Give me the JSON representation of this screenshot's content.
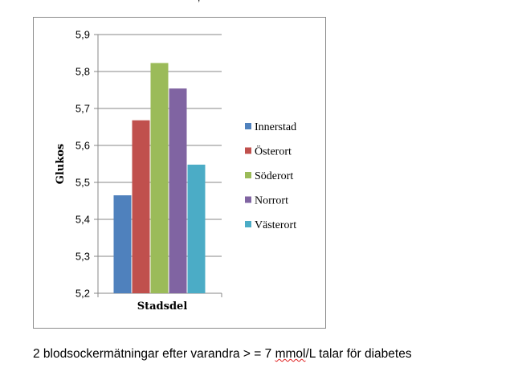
{
  "chart_data": {
    "type": "bar",
    "categories": [
      "Innerstad",
      "Österort",
      "Söderort",
      "Norrort",
      "Västerort"
    ],
    "values": [
      5.465,
      5.668,
      5.823,
      5.754,
      5.548
    ],
    "colors": [
      "#4f81bd",
      "#c0504d",
      "#9bbb59",
      "#8064a2",
      "#4bacc6"
    ],
    "xlabel": "Stadsdel",
    "ylabel": "Glukos",
    "ylim": [
      5.2,
      5.9
    ],
    "yticks": [
      "5,2",
      "5,3",
      "5,4",
      "5,5",
      "5,6",
      "5,7",
      "5,8",
      "5,9"
    ],
    "grid": true,
    "legend_position": "right"
  },
  "caption": {
    "before": "2 blodsockermätningar efter varandra > = 7 ",
    "flagged": "mmol",
    "after": "/L talar för diabetes"
  }
}
